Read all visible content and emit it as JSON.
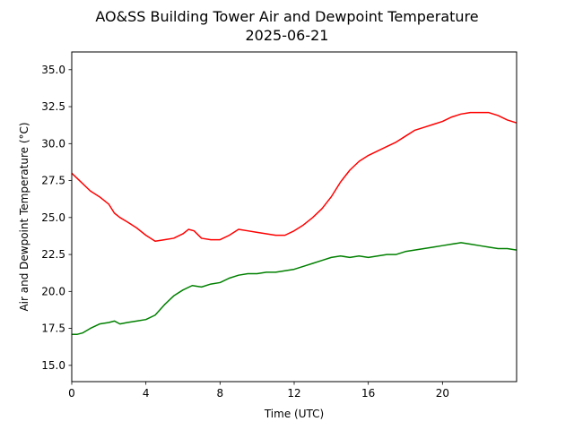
{
  "chart_data": {
    "type": "line",
    "title": "AO&SS Building Tower Air and Dewpoint Temperature",
    "subtitle": "2025-06-21",
    "xlabel": "Time (UTC)",
    "ylabel": "Air and Dewpoint Temperature (°C)",
    "xlim": [
      0,
      24
    ],
    "ylim": [
      13.9,
      36.2
    ],
    "xticks": [
      0,
      4,
      8,
      12,
      16,
      20
    ],
    "xtick_labels": [
      "0",
      "4",
      "8",
      "12",
      "16",
      "20"
    ],
    "yticks": [
      15.0,
      17.5,
      20.0,
      22.5,
      25.0,
      27.5,
      30.0,
      32.5,
      35.0
    ],
    "ytick_labels": [
      "15.0",
      "17.5",
      "20.0",
      "22.5",
      "25.0",
      "27.5",
      "30.0",
      "32.5",
      "35.0"
    ],
    "grid": false,
    "series": [
      {
        "color": "#ff0000",
        "x": [
          0,
          0.5,
          1,
          1.5,
          2,
          2.3,
          2.6,
          3,
          3.5,
          4,
          4.5,
          5,
          5.5,
          6,
          6.3,
          6.6,
          7,
          7.5,
          8,
          8.5,
          9,
          9.5,
          10,
          10.5,
          11,
          11.5,
          12,
          12.5,
          13,
          13.5,
          14,
          14.5,
          15,
          15.5,
          16,
          16.5,
          17,
          17.5,
          18,
          18.5,
          19,
          19.5,
          20,
          20.5,
          21,
          21.5,
          22,
          22.5,
          23,
          23.5,
          24
        ],
        "y": [
          28.0,
          27.4,
          26.8,
          26.4,
          25.9,
          25.3,
          25.0,
          24.7,
          24.3,
          23.8,
          23.4,
          23.5,
          23.6,
          23.9,
          24.2,
          24.1,
          23.6,
          23.5,
          23.5,
          23.8,
          24.2,
          24.1,
          24.0,
          23.9,
          23.8,
          23.8,
          24.1,
          24.5,
          25.0,
          25.6,
          26.4,
          27.4,
          28.2,
          28.8,
          29.2,
          29.5,
          29.8,
          30.1,
          30.5,
          30.9,
          31.1,
          31.3,
          31.5,
          31.8,
          32.0,
          32.1,
          32.1,
          32.1,
          31.9,
          31.6,
          31.4
        ]
      },
      {
        "color": "#008000",
        "x": [
          0,
          0.3,
          0.6,
          1,
          1.5,
          2,
          2.3,
          2.6,
          3,
          3.5,
          4,
          4.5,
          5,
          5.5,
          6,
          6.5,
          7,
          7.5,
          8,
          8.5,
          9,
          9.5,
          10,
          10.5,
          11,
          11.5,
          12,
          12.5,
          13,
          13.5,
          14,
          14.5,
          15,
          15.5,
          16,
          16.5,
          17,
          17.5,
          18,
          18.5,
          19,
          19.5,
          20,
          20.5,
          21,
          21.5,
          22,
          22.5,
          23,
          23.5,
          24
        ],
        "y": [
          17.1,
          17.1,
          17.2,
          17.5,
          17.8,
          17.9,
          18.0,
          17.8,
          17.9,
          18.0,
          18.1,
          18.4,
          19.1,
          19.7,
          20.1,
          20.4,
          20.3,
          20.5,
          20.6,
          20.9,
          21.1,
          21.2,
          21.2,
          21.3,
          21.3,
          21.4,
          21.5,
          21.7,
          21.9,
          22.1,
          22.3,
          22.4,
          22.3,
          22.4,
          22.3,
          22.4,
          22.5,
          22.5,
          22.7,
          22.8,
          22.9,
          23.0,
          23.1,
          23.2,
          23.3,
          23.2,
          23.1,
          23.0,
          22.9,
          22.9,
          22.8
        ]
      }
    ]
  }
}
